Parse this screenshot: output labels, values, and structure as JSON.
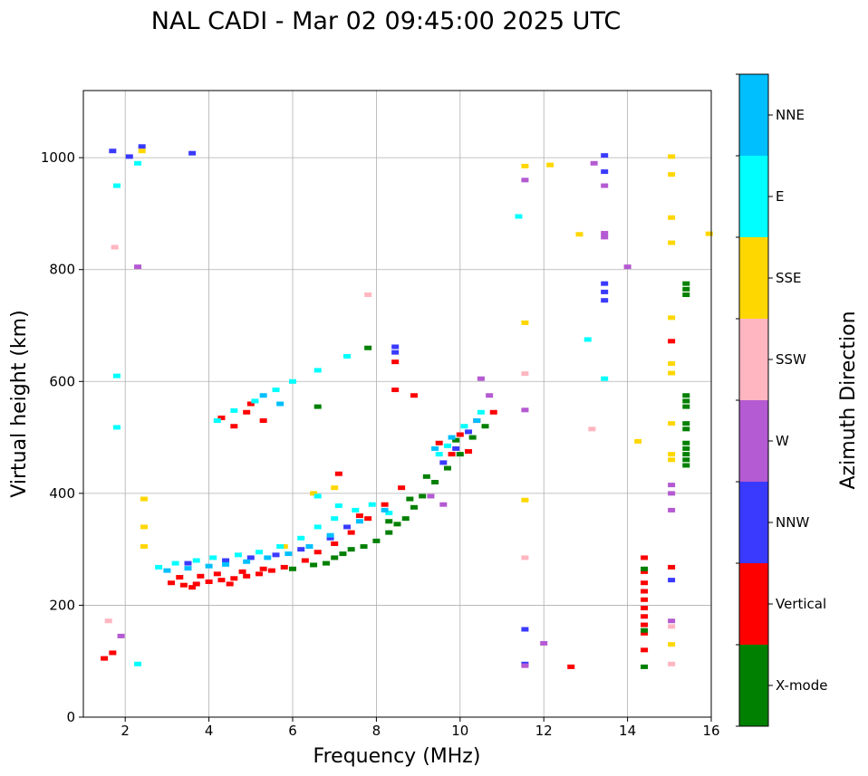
{
  "chart_data": {
    "type": "scatter",
    "title": "NAL CADI - Mar 02 09:45:00 2025 UTC",
    "xlabel": "Frequency (MHz)",
    "ylabel": "Virtual height (km)",
    "xlim": [
      1,
      16
    ],
    "ylim": [
      0,
      1120
    ],
    "xticks": [
      2,
      4,
      6,
      8,
      10,
      12,
      14,
      16
    ],
    "yticks": [
      0,
      200,
      400,
      600,
      800,
      1000
    ],
    "grid": true,
    "colorbar": {
      "label": "Azimuth Direction",
      "categories": [
        {
          "name": "X-mode",
          "color": "#008000"
        },
        {
          "name": "Vertical",
          "color": "#ff0000"
        },
        {
          "name": "NNW",
          "color": "#3a3aff"
        },
        {
          "name": "W",
          "color": "#b45ad2"
        },
        {
          "name": "SSW",
          "color": "#ffb6c1"
        },
        {
          "name": "SSE",
          "color": "#ffd700"
        },
        {
          "name": "E",
          "color": "#00ffff"
        },
        {
          "name": "NNE",
          "color": "#00bfff"
        }
      ]
    },
    "series": [
      {
        "name": "Vertical",
        "points": [
          [
            3.1,
            240
          ],
          [
            3.4,
            236
          ],
          [
            3.7,
            238
          ],
          [
            4.0,
            242
          ],
          [
            4.3,
            245
          ],
          [
            4.6,
            248
          ],
          [
            4.9,
            252
          ],
          [
            5.2,
            256
          ],
          [
            5.5,
            262
          ],
          [
            5.8,
            268
          ],
          [
            3.3,
            250
          ],
          [
            3.8,
            252
          ],
          [
            4.2,
            256
          ],
          [
            4.8,
            260
          ],
          [
            5.3,
            265
          ],
          [
            3.6,
            232
          ],
          [
            4.5,
            238
          ],
          [
            6.3,
            280
          ],
          [
            6.6,
            295
          ],
          [
            7.0,
            310
          ],
          [
            7.4,
            330
          ],
          [
            7.8,
            355
          ],
          [
            8.2,
            380
          ],
          [
            8.6,
            410
          ],
          [
            9.5,
            490
          ],
          [
            10.0,
            505
          ],
          [
            10.4,
            530
          ],
          [
            10.8,
            545
          ],
          [
            9.8,
            470
          ],
          [
            10.2,
            475
          ],
          [
            4.3,
            535
          ],
          [
            4.6,
            520
          ],
          [
            4.9,
            545
          ],
          [
            5.3,
            530
          ],
          [
            5.0,
            560
          ],
          [
            8.45,
            635
          ],
          [
            8.45,
            585
          ],
          [
            8.9,
            575
          ],
          [
            7.1,
            435
          ],
          [
            7.6,
            360
          ],
          [
            14.4,
            285
          ],
          [
            14.4,
            260
          ],
          [
            14.4,
            240
          ],
          [
            14.4,
            225
          ],
          [
            14.4,
            210
          ],
          [
            14.4,
            195
          ],
          [
            14.4,
            180
          ],
          [
            14.4,
            165
          ],
          [
            14.4,
            150
          ],
          [
            14.4,
            120
          ],
          [
            1.5,
            105
          ],
          [
            1.7,
            115
          ],
          [
            12.65,
            90
          ],
          [
            15.05,
            672
          ],
          [
            15.05,
            268
          ]
        ]
      },
      {
        "name": "X-mode",
        "points": [
          [
            6.0,
            265
          ],
          [
            6.5,
            272
          ],
          [
            7.0,
            285
          ],
          [
            7.4,
            300
          ],
          [
            7.7,
            305
          ],
          [
            8.0,
            315
          ],
          [
            8.3,
            330
          ],
          [
            8.5,
            345
          ],
          [
            8.7,
            355
          ],
          [
            8.9,
            375
          ],
          [
            9.1,
            395
          ],
          [
            9.4,
            420
          ],
          [
            9.7,
            445
          ],
          [
            10.0,
            470
          ],
          [
            10.3,
            500
          ],
          [
            10.6,
            520
          ],
          [
            8.3,
            350
          ],
          [
            8.8,
            390
          ],
          [
            9.2,
            430
          ],
          [
            9.9,
            495
          ],
          [
            6.8,
            275
          ],
          [
            7.2,
            292
          ],
          [
            14.4,
            265
          ],
          [
            14.4,
            90
          ],
          [
            14.4,
            155
          ],
          [
            15.4,
            450
          ],
          [
            15.4,
            460
          ],
          [
            15.4,
            470
          ],
          [
            15.4,
            480
          ],
          [
            15.4,
            490
          ],
          [
            15.4,
            515
          ],
          [
            15.4,
            525
          ],
          [
            15.4,
            555
          ],
          [
            15.4,
            565
          ],
          [
            15.4,
            575
          ],
          [
            15.4,
            755
          ],
          [
            15.4,
            765
          ],
          [
            15.4,
            775
          ],
          [
            6.6,
            555
          ],
          [
            7.8,
            660
          ]
        ]
      },
      {
        "name": "NNW",
        "points": [
          [
            13.45,
            1004
          ],
          [
            13.45,
            775
          ],
          [
            13.45,
            760
          ],
          [
            13.45,
            745
          ],
          [
            13.45,
            975
          ],
          [
            3.5,
            275
          ],
          [
            4.4,
            280
          ],
          [
            5.0,
            285
          ],
          [
            5.6,
            290
          ],
          [
            6.2,
            300
          ],
          [
            6.9,
            320
          ],
          [
            7.3,
            340
          ],
          [
            9.6,
            455
          ],
          [
            9.9,
            480
          ],
          [
            10.2,
            510
          ],
          [
            8.45,
            662
          ],
          [
            8.45,
            652
          ],
          [
            11.55,
            157
          ],
          [
            11.55,
            95
          ],
          [
            15.05,
            245
          ],
          [
            2.1,
            1002
          ],
          [
            1.7,
            1012
          ],
          [
            3.6,
            1008
          ],
          [
            2.4,
            1020
          ]
        ]
      },
      {
        "name": "W",
        "points": [
          [
            13.45,
            865
          ],
          [
            13.45,
            858
          ],
          [
            13.45,
            950
          ],
          [
            14.0,
            805
          ],
          [
            13.2,
            990
          ],
          [
            11.55,
            960
          ],
          [
            11.55,
            549
          ],
          [
            9.3,
            395
          ],
          [
            9.6,
            380
          ],
          [
            10.7,
            575
          ],
          [
            10.5,
            605
          ],
          [
            15.05,
            415
          ],
          [
            15.05,
            400
          ],
          [
            15.05,
            370
          ],
          [
            15.05,
            172
          ],
          [
            12.0,
            132
          ],
          [
            11.55,
            92
          ],
          [
            1.9,
            145
          ],
          [
            2.3,
            805
          ]
        ]
      },
      {
        "name": "SSW",
        "points": [
          [
            1.75,
            840
          ],
          [
            13.15,
            515
          ],
          [
            11.55,
            614
          ],
          [
            11.55,
            285
          ],
          [
            15.05,
            162
          ],
          [
            15.05,
            95
          ],
          [
            1.6,
            172
          ],
          [
            7.8,
            755
          ]
        ]
      },
      {
        "name": "SSE",
        "points": [
          [
            15.05,
            1002
          ],
          [
            15.05,
            970
          ],
          [
            15.05,
            893
          ],
          [
            15.05,
            848
          ],
          [
            15.05,
            714
          ],
          [
            15.05,
            632
          ],
          [
            15.05,
            615
          ],
          [
            15.05,
            525
          ],
          [
            15.05,
            470
          ],
          [
            15.05,
            460
          ],
          [
            15.05,
            130
          ],
          [
            12.85,
            863
          ],
          [
            12.15,
            987
          ],
          [
            11.55,
            985
          ],
          [
            11.55,
            388
          ],
          [
            11.55,
            705
          ],
          [
            15.95,
            864
          ],
          [
            14.25,
            493
          ],
          [
            2.45,
            390
          ],
          [
            2.45,
            340
          ],
          [
            2.45,
            305
          ],
          [
            6.5,
            400
          ],
          [
            7.0,
            410
          ],
          [
            5.8,
            305
          ],
          [
            2.4,
            1012
          ]
        ]
      },
      {
        "name": "E",
        "points": [
          [
            2.8,
            268
          ],
          [
            3.2,
            275
          ],
          [
            3.7,
            280
          ],
          [
            4.1,
            285
          ],
          [
            4.7,
            290
          ],
          [
            5.2,
            295
          ],
          [
            5.7,
            305
          ],
          [
            6.2,
            320
          ],
          [
            6.6,
            340
          ],
          [
            7.0,
            355
          ],
          [
            7.5,
            370
          ],
          [
            7.9,
            380
          ],
          [
            8.3,
            365
          ],
          [
            4.2,
            530
          ],
          [
            4.6,
            548
          ],
          [
            5.1,
            565
          ],
          [
            5.6,
            585
          ],
          [
            6.0,
            600
          ],
          [
            6.6,
            620
          ],
          [
            7.3,
            645
          ],
          [
            9.5,
            470
          ],
          [
            9.7,
            485
          ],
          [
            10.1,
            520
          ],
          [
            10.5,
            545
          ],
          [
            13.05,
            675
          ],
          [
            13.45,
            605
          ],
          [
            11.4,
            895
          ],
          [
            2.3,
            95
          ],
          [
            2.3,
            990
          ],
          [
            1.8,
            610
          ],
          [
            1.8,
            518
          ],
          [
            1.8,
            950
          ],
          [
            6.6,
            395
          ],
          [
            7.1,
            378
          ]
        ]
      },
      {
        "name": "NNE",
        "points": [
          [
            3.0,
            262
          ],
          [
            3.5,
            266
          ],
          [
            4.0,
            270
          ],
          [
            4.4,
            273
          ],
          [
            4.9,
            278
          ],
          [
            5.4,
            285
          ],
          [
            5.9,
            292
          ],
          [
            6.4,
            305
          ],
          [
            6.9,
            325
          ],
          [
            7.6,
            350
          ],
          [
            8.2,
            370
          ],
          [
            5.3,
            575
          ],
          [
            5.7,
            560
          ],
          [
            9.4,
            480
          ],
          [
            9.8,
            500
          ],
          [
            10.4,
            530
          ]
        ]
      }
    ]
  }
}
